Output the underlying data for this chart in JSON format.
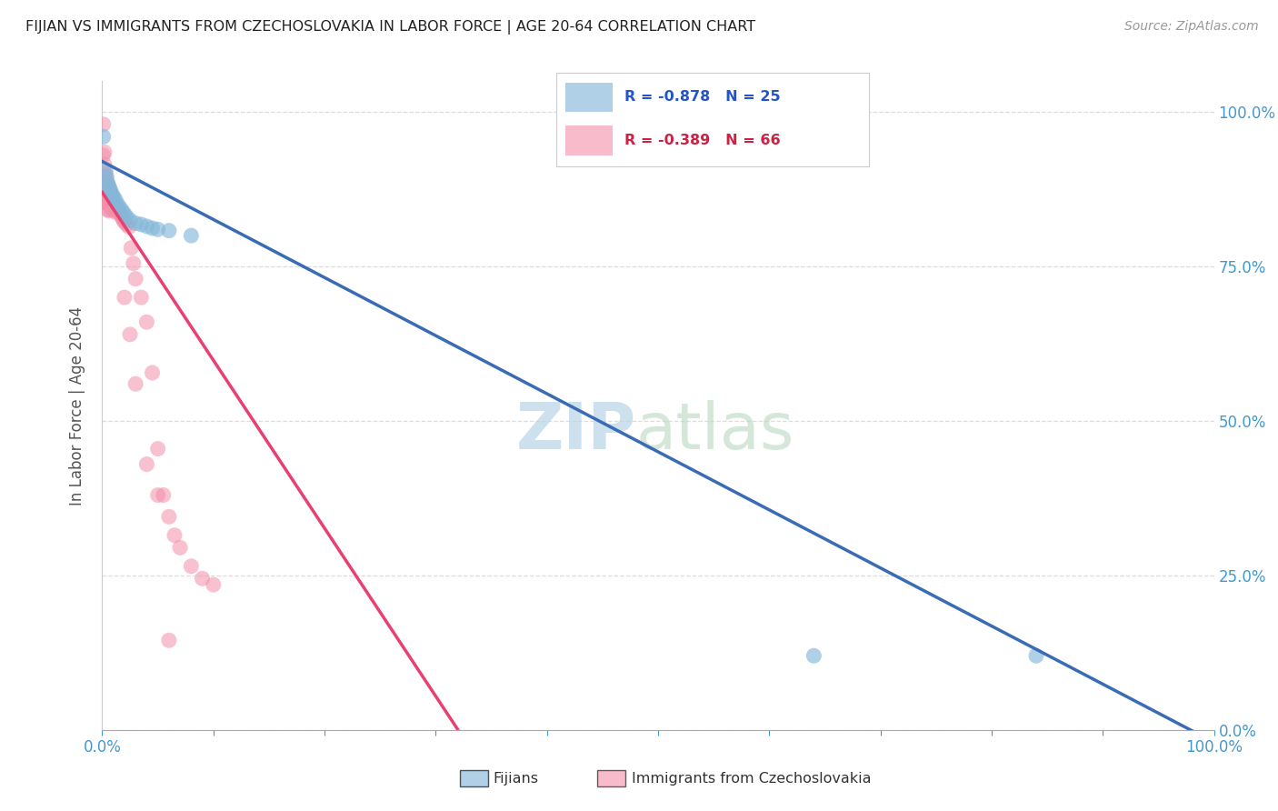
{
  "title": "FIJIAN VS IMMIGRANTS FROM CZECHOSLOVAKIA IN LABOR FORCE | AGE 20-64 CORRELATION CHART",
  "source": "Source: ZipAtlas.com",
  "ylabel": "In Labor Force | Age 20-64",
  "legend_blue_r": "R = -0.878",
  "legend_blue_n": "N = 25",
  "legend_pink_r": "R = -0.389",
  "legend_pink_n": "N = 66",
  "blue_color": "#85B8D9",
  "pink_color": "#F28FAA",
  "blue_line_color": "#3A6BB5",
  "pink_line_color": "#E84070",
  "pink_dash_color": "#F0A0B8",
  "watermark_zip": "ZIP",
  "watermark_atlas": "atlas",
  "blue_scatter": [
    [
      0.001,
      0.96
    ],
    [
      0.003,
      0.905
    ],
    [
      0.004,
      0.895
    ],
    [
      0.005,
      0.885
    ],
    [
      0.006,
      0.88
    ],
    [
      0.007,
      0.875
    ],
    [
      0.008,
      0.87
    ],
    [
      0.009,
      0.865
    ],
    [
      0.01,
      0.863
    ],
    [
      0.012,
      0.858
    ],
    [
      0.014,
      0.85
    ],
    [
      0.016,
      0.845
    ],
    [
      0.018,
      0.84
    ],
    [
      0.02,
      0.835
    ],
    [
      0.022,
      0.83
    ],
    [
      0.025,
      0.825
    ],
    [
      0.03,
      0.82
    ],
    [
      0.035,
      0.818
    ],
    [
      0.04,
      0.815
    ],
    [
      0.045,
      0.812
    ],
    [
      0.05,
      0.81
    ],
    [
      0.06,
      0.808
    ],
    [
      0.08,
      0.8
    ],
    [
      0.64,
      0.12
    ],
    [
      0.84,
      0.12
    ]
  ],
  "pink_scatter": [
    [
      0.001,
      0.98
    ],
    [
      0.001,
      0.93
    ],
    [
      0.002,
      0.935
    ],
    [
      0.002,
      0.915
    ],
    [
      0.002,
      0.895
    ],
    [
      0.003,
      0.9
    ],
    [
      0.003,
      0.88
    ],
    [
      0.003,
      0.87
    ],
    [
      0.003,
      0.895
    ],
    [
      0.004,
      0.885
    ],
    [
      0.004,
      0.875
    ],
    [
      0.004,
      0.862
    ],
    [
      0.004,
      0.852
    ],
    [
      0.005,
      0.882
    ],
    [
      0.005,
      0.865
    ],
    [
      0.005,
      0.855
    ],
    [
      0.005,
      0.842
    ],
    [
      0.005,
      0.87
    ],
    [
      0.006,
      0.878
    ],
    [
      0.006,
      0.865
    ],
    [
      0.006,
      0.852
    ],
    [
      0.006,
      0.84
    ],
    [
      0.007,
      0.872
    ],
    [
      0.007,
      0.86
    ],
    [
      0.007,
      0.848
    ],
    [
      0.008,
      0.868
    ],
    [
      0.008,
      0.855
    ],
    [
      0.008,
      0.843
    ],
    [
      0.009,
      0.862
    ],
    [
      0.009,
      0.85
    ],
    [
      0.01,
      0.858
    ],
    [
      0.01,
      0.845
    ],
    [
      0.011,
      0.854
    ],
    [
      0.011,
      0.841
    ],
    [
      0.012,
      0.85
    ],
    [
      0.012,
      0.838
    ],
    [
      0.013,
      0.846
    ],
    [
      0.014,
      0.843
    ],
    [
      0.015,
      0.839
    ],
    [
      0.016,
      0.836
    ],
    [
      0.017,
      0.832
    ],
    [
      0.018,
      0.829
    ],
    [
      0.019,
      0.825
    ],
    [
      0.02,
      0.822
    ],
    [
      0.022,
      0.818
    ],
    [
      0.024,
      0.814
    ],
    [
      0.026,
      0.78
    ],
    [
      0.028,
      0.755
    ],
    [
      0.03,
      0.73
    ],
    [
      0.035,
      0.7
    ],
    [
      0.04,
      0.66
    ],
    [
      0.045,
      0.578
    ],
    [
      0.05,
      0.455
    ],
    [
      0.055,
      0.38
    ],
    [
      0.06,
      0.345
    ],
    [
      0.065,
      0.315
    ],
    [
      0.07,
      0.295
    ],
    [
      0.08,
      0.265
    ],
    [
      0.09,
      0.245
    ],
    [
      0.1,
      0.235
    ],
    [
      0.04,
      0.43
    ],
    [
      0.05,
      0.38
    ],
    [
      0.03,
      0.56
    ],
    [
      0.025,
      0.64
    ],
    [
      0.02,
      0.7
    ],
    [
      0.06,
      0.145
    ]
  ],
  "blue_reg": [
    0.0,
    0.92,
    1.0,
    -0.02
  ],
  "pink_reg_solid": [
    0.0,
    0.87,
    0.32,
    0.0
  ],
  "pink_reg_dash": [
    0.32,
    0.0,
    0.65,
    -0.4
  ],
  "xmin": 0.0,
  "xmax": 1.0,
  "ymin": 0.0,
  "ymax": 1.05,
  "xtick_positions": [
    0.0,
    0.1,
    0.2,
    0.3,
    0.4,
    0.5,
    0.6,
    0.7,
    0.8,
    0.9,
    1.0
  ],
  "ytick_positions": [
    0.0,
    0.25,
    0.5,
    0.75,
    1.0
  ],
  "ytick_labels": [
    "0.0%",
    "25.0%",
    "50.0%",
    "75.0%",
    "100.0%"
  ]
}
